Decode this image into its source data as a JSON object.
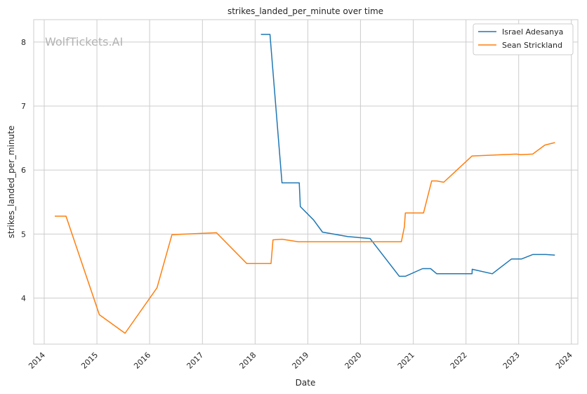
{
  "chart_data": {
    "type": "line",
    "title": "strikes_landed_per_minute over time",
    "xlabel": "Date",
    "ylabel": "strikes_landed_per_minute",
    "watermark": "WolfTickets.AI",
    "grid": true,
    "legend_position": "top-right",
    "x_tick_labels": [
      "2014",
      "2015",
      "2016",
      "2017",
      "2018",
      "2019",
      "2020",
      "2021",
      "2022",
      "2023",
      "2024"
    ],
    "y_tick_labels": [
      "4",
      "5",
      "6",
      "7",
      "8"
    ],
    "y_ticks": [
      4,
      5,
      6,
      7,
      8
    ],
    "xlim": [
      "2013-10-20",
      "2024-02-15"
    ],
    "ylim": [
      3.28,
      8.35
    ],
    "series": [
      {
        "name": "Israel Adesanya",
        "color": "#1f77b4",
        "points": [
          {
            "date": "2018-02-10",
            "value": 8.12
          },
          {
            "date": "2018-04-14",
            "value": 8.12
          },
          {
            "date": "2018-07-06",
            "value": 5.8
          },
          {
            "date": "2018-11-03",
            "value": 5.8
          },
          {
            "date": "2018-11-10",
            "value": 5.43
          },
          {
            "date": "2019-02-10",
            "value": 5.22
          },
          {
            "date": "2019-04-13",
            "value": 5.03
          },
          {
            "date": "2019-10-06",
            "value": 4.96
          },
          {
            "date": "2020-03-07",
            "value": 4.93
          },
          {
            "date": "2020-09-26",
            "value": 4.34
          },
          {
            "date": "2020-11-07",
            "value": 4.34
          },
          {
            "date": "2021-03-06",
            "value": 4.46
          },
          {
            "date": "2021-05-01",
            "value": 4.46
          },
          {
            "date": "2021-06-12",
            "value": 4.38
          },
          {
            "date": "2022-02-12",
            "value": 4.38
          },
          {
            "date": "2022-02-13",
            "value": 4.45
          },
          {
            "date": "2022-07-02",
            "value": 4.38
          },
          {
            "date": "2022-11-12",
            "value": 4.61
          },
          {
            "date": "2023-01-20",
            "value": 4.61
          },
          {
            "date": "2023-04-08",
            "value": 4.68
          },
          {
            "date": "2023-07-08",
            "value": 4.68
          },
          {
            "date": "2023-09-09",
            "value": 4.67
          }
        ]
      },
      {
        "name": "Sean Strickland",
        "color": "#ff7f0e",
        "points": [
          {
            "date": "2014-03-15",
            "value": 5.28
          },
          {
            "date": "2014-06-01",
            "value": 5.28
          },
          {
            "date": "2015-01-18",
            "value": 3.74
          },
          {
            "date": "2015-07-15",
            "value": 3.45
          },
          {
            "date": "2016-02-21",
            "value": 4.16
          },
          {
            "date": "2016-06-04",
            "value": 4.99
          },
          {
            "date": "2017-04-08",
            "value": 5.02
          },
          {
            "date": "2017-11-04",
            "value": 4.54
          },
          {
            "date": "2018-04-21",
            "value": 4.54
          },
          {
            "date": "2018-05-05",
            "value": 4.91
          },
          {
            "date": "2018-07-07",
            "value": 4.92
          },
          {
            "date": "2018-10-27",
            "value": 4.88
          },
          {
            "date": "2020-10-10",
            "value": 4.88
          },
          {
            "date": "2020-10-31",
            "value": 5.11
          },
          {
            "date": "2020-11-07",
            "value": 5.33
          },
          {
            "date": "2021-03-13",
            "value": 5.33
          },
          {
            "date": "2021-05-08",
            "value": 5.83
          },
          {
            "date": "2021-06-12",
            "value": 5.83
          },
          {
            "date": "2021-07-31",
            "value": 5.81
          },
          {
            "date": "2022-02-12",
            "value": 6.22
          },
          {
            "date": "2022-12-17",
            "value": 6.25
          },
          {
            "date": "2023-01-14",
            "value": 6.24
          },
          {
            "date": "2023-04-08",
            "value": 6.25
          },
          {
            "date": "2023-07-01",
            "value": 6.39
          },
          {
            "date": "2023-09-09",
            "value": 6.43
          }
        ]
      }
    ]
  }
}
